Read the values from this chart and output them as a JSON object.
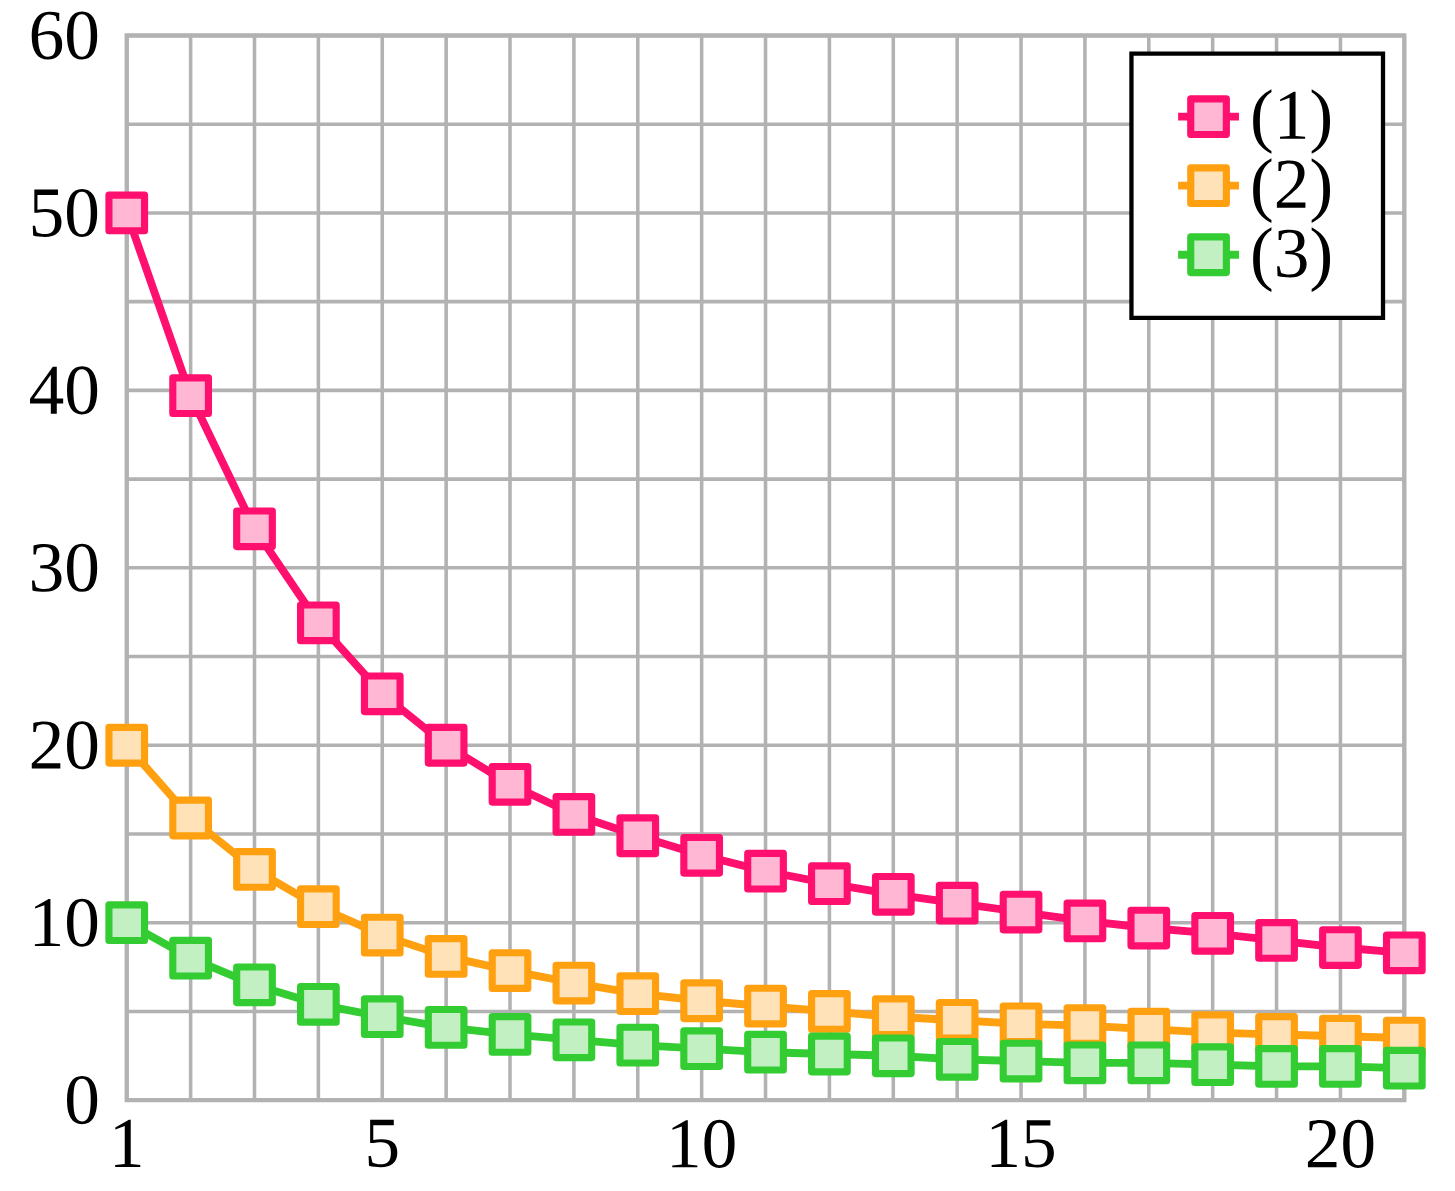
{
  "chart_data": {
    "type": "line",
    "x": [
      1,
      2,
      3,
      4,
      5,
      6,
      7,
      8,
      9,
      10,
      11,
      12,
      13,
      14,
      15,
      16,
      17,
      18,
      19,
      20,
      21
    ],
    "xlim": [
      1,
      21
    ],
    "xticks": [
      1,
      {
        "value": 2,
        "label": null
      },
      {
        "value": 3,
        "label": null
      },
      {
        "value": 4,
        "label": null
      },
      5,
      {
        "value": 6,
        "label": null
      },
      {
        "value": 7,
        "label": null
      },
      {
        "value": 8,
        "label": null
      },
      {
        "value": 9,
        "label": null
      },
      10,
      {
        "value": 11,
        "label": null
      },
      {
        "value": 12,
        "label": null
      },
      {
        "value": 13,
        "label": null
      },
      {
        "value": 14,
        "label": null
      },
      15,
      {
        "value": 16,
        "label": null
      },
      {
        "value": 17,
        "label": null
      },
      {
        "value": 18,
        "label": null
      },
      {
        "value": 19,
        "label": null
      },
      20,
      {
        "value": 21,
        "label": null
      }
    ],
    "ylim": [
      0,
      60
    ],
    "yticks": [
      0,
      {
        "value": 5,
        "label": null
      },
      10,
      {
        "value": 15,
        "label": null
      },
      20,
      {
        "value": 25,
        "label": null
      },
      30,
      {
        "value": 35,
        "label": null
      },
      40,
      {
        "value": 45,
        "label": null
      },
      50,
      {
        "value": 55,
        "label": null
      },
      60
    ],
    "grid": true,
    "legend": "top right",
    "marker": "square",
    "line_style": "solid",
    "series": [
      {
        "name": "(1)",
        "color": "#ff0f6e",
        "values": [
          50,
          39.7,
          32.2,
          26.9,
          22.9,
          20.0,
          17.8,
          16.1,
          14.9,
          13.8,
          12.9,
          12.2,
          11.6,
          11.1,
          10.6,
          10.1,
          9.7,
          9.4,
          9.0,
          8.6,
          8.3
        ]
      },
      {
        "name": "(2)",
        "color": "#ffa010",
        "values": [
          20,
          15.9,
          13.0,
          10.9,
          9.3,
          8.1,
          7.3,
          6.6,
          6.0,
          5.6,
          5.3,
          5.0,
          4.7,
          4.5,
          4.3,
          4.2,
          4.0,
          3.8,
          3.7,
          3.6,
          3.5
        ]
      },
      {
        "name": "(3)",
        "color": "#33cc33",
        "values": [
          10,
          8.0,
          6.5,
          5.4,
          4.7,
          4.1,
          3.7,
          3.4,
          3.1,
          2.9,
          2.7,
          2.6,
          2.5,
          2.3,
          2.2,
          2.1,
          2.1,
          2.0,
          1.9,
          1.9,
          1.8
        ]
      }
    ]
  }
}
